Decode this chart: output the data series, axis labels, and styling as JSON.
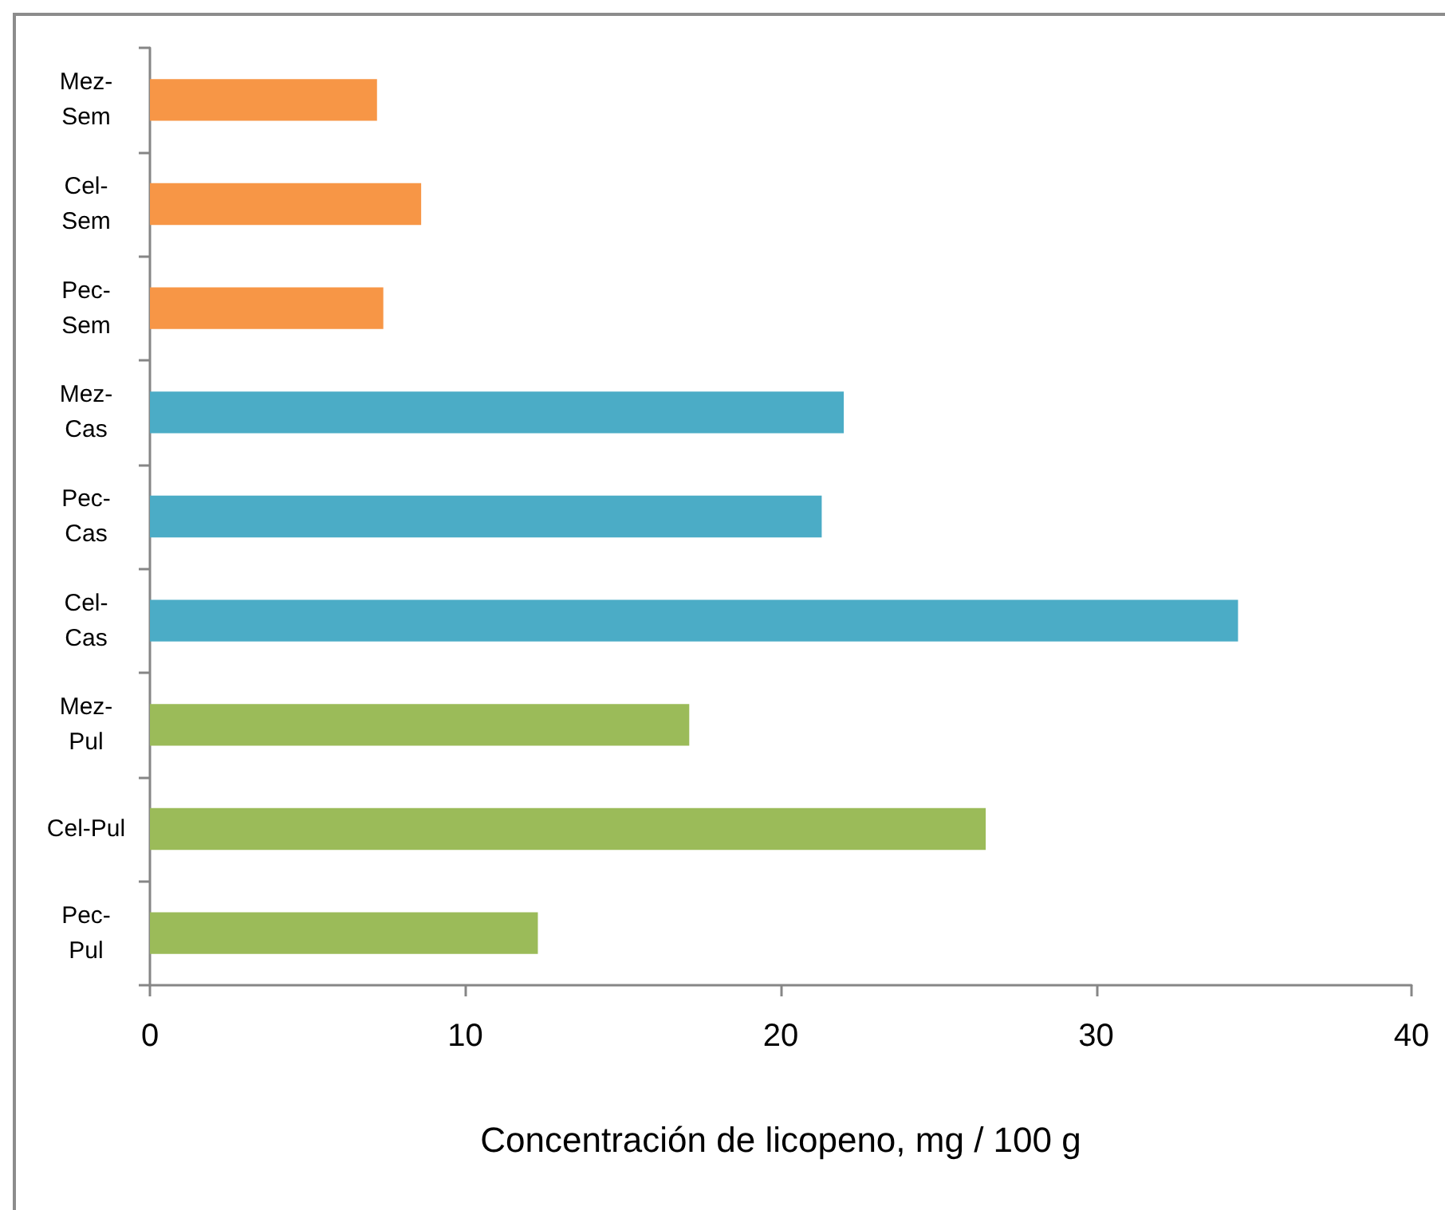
{
  "chart_data": {
    "type": "bar",
    "orientation": "horizontal",
    "xlabel": "Concentración de licopeno, mg / 100 g",
    "categories": [
      "Mez-Sem",
      "Cel-Sem",
      "Pec-Sem",
      "Mez-Cas",
      "Pec-Cas",
      "Cel-Cas",
      "Mez-Pul",
      "Cel-Pul",
      "Pec-Pul"
    ],
    "values": [
      7.2,
      8.6,
      7.4,
      22.0,
      21.3,
      34.5,
      17.1,
      26.5,
      12.3
    ],
    "colors": [
      "#f79646",
      "#f79646",
      "#f79646",
      "#4bacc6",
      "#4bacc6",
      "#4bacc6",
      "#9bbb59",
      "#9bbb59",
      "#9bbb59"
    ],
    "xlim": [
      0,
      40
    ],
    "xticks": [
      0,
      10,
      20,
      30,
      40
    ],
    "grid": false
  }
}
